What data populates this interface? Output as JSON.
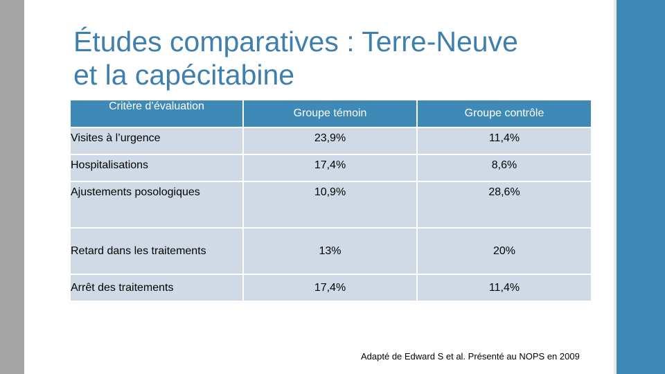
{
  "slide": {
    "title_line1": "Études comparatives : Terre-Neuve",
    "title_line2": "et la capécitabine",
    "table": {
      "headers": [
        "Critère d’évaluation",
        "Groupe témoin",
        "Groupe contrôle"
      ],
      "rows": [
        {
          "label": "Visites à l’urgence",
          "temoin": "23,9%",
          "controle": "11,4%"
        },
        {
          "label": "Hospitalisations",
          "temoin": "17,4%",
          "controle": "8,6%"
        },
        {
          "label": "Ajustements posologiques",
          "temoin": "10,9%",
          "controle": "28,6%"
        },
        {
          "label": "Retard dans les traitements",
          "temoin": "13%",
          "controle": "20%"
        },
        {
          "label": "Arrêt des traitements",
          "temoin": "17,4%",
          "controle": "11,4%"
        }
      ]
    },
    "footnote": "Adapté de Edward S et al. Présenté au NOPS en 2009",
    "colors": {
      "accent": "#3e89b5",
      "title": "#3f7fae",
      "cell_bg": "#d0dae6",
      "left_bar": "#a5a5a5"
    }
  }
}
